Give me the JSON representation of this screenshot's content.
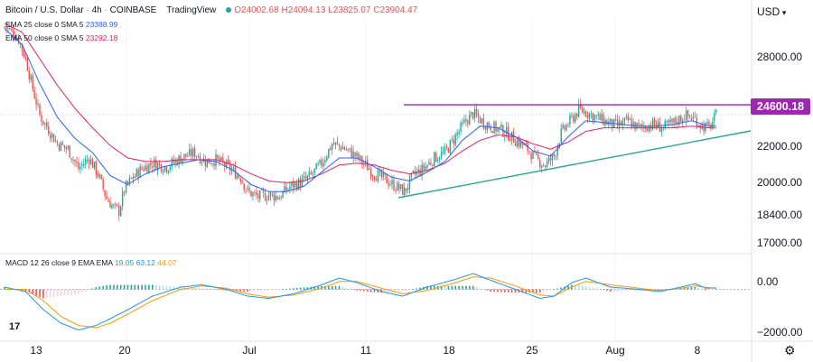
{
  "header": {
    "symbol": "Bitcoin / U.S. Dollar",
    "interval": "4h",
    "exchange": "COINBASE",
    "platform": "TradingView",
    "open": "O24002.68",
    "high": "H24094.13",
    "low": "L23825.07",
    "close": "C23904.47"
  },
  "indicators": {
    "ema25": {
      "label": "EMA 25 close 0 SMA 5",
      "value": "23388.99",
      "color": "#2962ff"
    },
    "ema50": {
      "label": "EMA 50 close 0 SMA 5",
      "value": "23292.18",
      "color": "#e91e63"
    },
    "macd": {
      "label": "MACD 12 26 close 9 EMA EMA",
      "hist": "19.05",
      "macd": "63.12",
      "signal": "44.07"
    }
  },
  "price_axis": {
    "currency": "USD",
    "ticks": [
      "28000.00",
      "24600.18",
      "22000.00",
      "20000.00",
      "18400.00",
      "17000.00"
    ],
    "current_price": "24600.18"
  },
  "macd_axis": {
    "ticks": [
      "0.00",
      "−2000.00"
    ]
  },
  "time_axis": {
    "ticks": [
      "13",
      "20",
      "Jul",
      "11",
      "18",
      "25",
      "Aug",
      "8"
    ]
  },
  "branding": {
    "logo": "17"
  },
  "colors": {
    "up": "#26a69a",
    "down": "#ef5350",
    "resistance": "#9c27b0",
    "trendline": "#26a69a",
    "ema25": "#2962ff",
    "ema50": "#e91e63",
    "macd_line": "#2196f3",
    "signal_line": "#ff9800"
  },
  "chart_data": {
    "type": "candlestick",
    "title": "Bitcoin / U.S. Dollar, 4h, COINBASE",
    "price_range": [
      16500,
      29500
    ],
    "macd_range": [
      -2300,
      1300
    ],
    "resistance_level": 24600.18,
    "trendline": {
      "start": {
        "bar": 226,
        "price": 19300
      },
      "end": {
        "bar": 424,
        "price": 23200
      }
    },
    "anchors": [
      [
        0,
        29000
      ],
      [
        5,
        28700
      ],
      [
        8,
        28300
      ],
      [
        12,
        27200
      ],
      [
        16,
        25500
      ],
      [
        20,
        24000
      ],
      [
        25,
        23200
      ],
      [
        30,
        22400
      ],
      [
        36,
        22100
      ],
      [
        42,
        21000
      ],
      [
        48,
        21600
      ],
      [
        53,
        20700
      ],
      [
        58,
        19300
      ],
      [
        62,
        18800
      ],
      [
        65,
        18600
      ],
      [
        68,
        19800
      ],
      [
        72,
        20400
      ],
      [
        78,
        21000
      ],
      [
        84,
        21300
      ],
      [
        92,
        21100
      ],
      [
        100,
        21600
      ],
      [
        108,
        21900
      ],
      [
        114,
        21400
      ],
      [
        120,
        21500
      ],
      [
        128,
        21000
      ],
      [
        134,
        20500
      ],
      [
        138,
        19700
      ],
      [
        144,
        19400
      ],
      [
        150,
        19500
      ],
      [
        156,
        19400
      ],
      [
        162,
        20000
      ],
      [
        168,
        20200
      ],
      [
        174,
        20600
      ],
      [
        180,
        21300
      ],
      [
        186,
        22400
      ],
      [
        192,
        22200
      ],
      [
        198,
        21800
      ],
      [
        204,
        21300
      ],
      [
        210,
        20700
      ],
      [
        216,
        20400
      ],
      [
        222,
        20000
      ],
      [
        227,
        19700
      ],
      [
        232,
        20600
      ],
      [
        238,
        21000
      ],
      [
        244,
        21600
      ],
      [
        250,
        21900
      ],
      [
        256,
        22800
      ],
      [
        262,
        23700
      ],
      [
        266,
        24100
      ],
      [
        272,
        23600
      ],
      [
        278,
        23300
      ],
      [
        284,
        23100
      ],
      [
        290,
        22600
      ],
      [
        296,
        22200
      ],
      [
        302,
        21500
      ],
      [
        307,
        21200
      ],
      [
        312,
        21700
      ],
      [
        316,
        23000
      ],
      [
        322,
        23800
      ],
      [
        326,
        24300
      ],
      [
        330,
        24200
      ],
      [
        336,
        23900
      ],
      [
        342,
        23600
      ],
      [
        348,
        23400
      ],
      [
        354,
        23700
      ],
      [
        360,
        23300
      ],
      [
        368,
        23500
      ],
      [
        374,
        23300
      ],
      [
        380,
        23600
      ],
      [
        386,
        24000
      ],
      [
        392,
        23800
      ],
      [
        396,
        23400
      ],
      [
        400,
        23300
      ],
      [
        404,
        24000
      ]
    ],
    "ema25": [
      [
        0,
        28900
      ],
      [
        10,
        28000
      ],
      [
        20,
        25800
      ],
      [
        30,
        23900
      ],
      [
        40,
        22700
      ],
      [
        50,
        21900
      ],
      [
        60,
        20600
      ],
      [
        70,
        20100
      ],
      [
        80,
        20700
      ],
      [
        90,
        21100
      ],
      [
        100,
        21300
      ],
      [
        110,
        21500
      ],
      [
        120,
        21400
      ],
      [
        130,
        20900
      ],
      [
        140,
        20100
      ],
      [
        150,
        19700
      ],
      [
        160,
        19700
      ],
      [
        170,
        20000
      ],
      [
        180,
        20800
      ],
      [
        190,
        21600
      ],
      [
        200,
        21600
      ],
      [
        210,
        21100
      ],
      [
        220,
        20500
      ],
      [
        230,
        20300
      ],
      [
        240,
        20800
      ],
      [
        250,
        21400
      ],
      [
        260,
        22600
      ],
      [
        270,
        23400
      ],
      [
        280,
        23300
      ],
      [
        290,
        22800
      ],
      [
        300,
        22000
      ],
      [
        310,
        21700
      ],
      [
        320,
        22800
      ],
      [
        330,
        23700
      ],
      [
        340,
        23600
      ],
      [
        350,
        23500
      ],
      [
        360,
        23400
      ],
      [
        370,
        23400
      ],
      [
        380,
        23500
      ],
      [
        390,
        23700
      ],
      [
        400,
        23400
      ],
      [
        404,
        23390
      ]
    ],
    "ema50": [
      [
        0,
        29200
      ],
      [
        10,
        28700
      ],
      [
        20,
        27200
      ],
      [
        30,
        25700
      ],
      [
        40,
        24400
      ],
      [
        50,
        23300
      ],
      [
        60,
        22300
      ],
      [
        70,
        21600
      ],
      [
        80,
        21400
      ],
      [
        90,
        21400
      ],
      [
        100,
        21500
      ],
      [
        110,
        21500
      ],
      [
        120,
        21500
      ],
      [
        130,
        21200
      ],
      [
        140,
        20700
      ],
      [
        150,
        20300
      ],
      [
        160,
        20200
      ],
      [
        170,
        20300
      ],
      [
        180,
        20700
      ],
      [
        190,
        21200
      ],
      [
        200,
        21300
      ],
      [
        210,
        21200
      ],
      [
        220,
        20900
      ],
      [
        230,
        20700
      ],
      [
        240,
        20900
      ],
      [
        250,
        21300
      ],
      [
        260,
        22000
      ],
      [
        270,
        22600
      ],
      [
        280,
        22900
      ],
      [
        290,
        22800
      ],
      [
        300,
        22400
      ],
      [
        310,
        22100
      ],
      [
        320,
        22500
      ],
      [
        330,
        23100
      ],
      [
        340,
        23300
      ],
      [
        350,
        23300
      ],
      [
        360,
        23300
      ],
      [
        370,
        23300
      ],
      [
        380,
        23300
      ],
      [
        390,
        23400
      ],
      [
        400,
        23300
      ],
      [
        404,
        23290
      ]
    ],
    "macd_line": [
      [
        0,
        100
      ],
      [
        12,
        -100
      ],
      [
        22,
        -900
      ],
      [
        32,
        -1500
      ],
      [
        42,
        -1800
      ],
      [
        52,
        -1600
      ],
      [
        60,
        -1300
      ],
      [
        70,
        -900
      ],
      [
        84,
        -300
      ],
      [
        100,
        100
      ],
      [
        112,
        200
      ],
      [
        126,
        0
      ],
      [
        138,
        -300
      ],
      [
        150,
        -400
      ],
      [
        164,
        -200
      ],
      [
        180,
        200
      ],
      [
        190,
        500
      ],
      [
        200,
        300
      ],
      [
        214,
        -100
      ],
      [
        226,
        -300
      ],
      [
        240,
        100
      ],
      [
        254,
        400
      ],
      [
        266,
        700
      ],
      [
        276,
        400
      ],
      [
        290,
        0
      ],
      [
        304,
        -400
      ],
      [
        312,
        -300
      ],
      [
        322,
        300
      ],
      [
        330,
        500
      ],
      [
        344,
        100
      ],
      [
        360,
        0
      ],
      [
        372,
        -100
      ],
      [
        384,
        100
      ],
      [
        392,
        250
      ],
      [
        398,
        50
      ],
      [
        404,
        63
      ]
    ],
    "signal_line": [
      [
        0,
        0
      ],
      [
        12,
        0
      ],
      [
        22,
        -500
      ],
      [
        32,
        -1200
      ],
      [
        42,
        -1600
      ],
      [
        52,
        -1700
      ],
      [
        60,
        -1500
      ],
      [
        70,
        -1100
      ],
      [
        84,
        -500
      ],
      [
        100,
        0
      ],
      [
        112,
        150
      ],
      [
        126,
        50
      ],
      [
        138,
        -200
      ],
      [
        150,
        -350
      ],
      [
        164,
        -250
      ],
      [
        180,
        50
      ],
      [
        190,
        350
      ],
      [
        200,
        350
      ],
      [
        214,
        50
      ],
      [
        226,
        -200
      ],
      [
        240,
        -50
      ],
      [
        254,
        250
      ],
      [
        266,
        550
      ],
      [
        276,
        500
      ],
      [
        290,
        150
      ],
      [
        304,
        -250
      ],
      [
        312,
        -300
      ],
      [
        322,
        100
      ],
      [
        330,
        350
      ],
      [
        344,
        200
      ],
      [
        360,
        50
      ],
      [
        372,
        -50
      ],
      [
        384,
        50
      ],
      [
        392,
        150
      ],
      [
        398,
        90
      ],
      [
        404,
        44
      ]
    ]
  }
}
